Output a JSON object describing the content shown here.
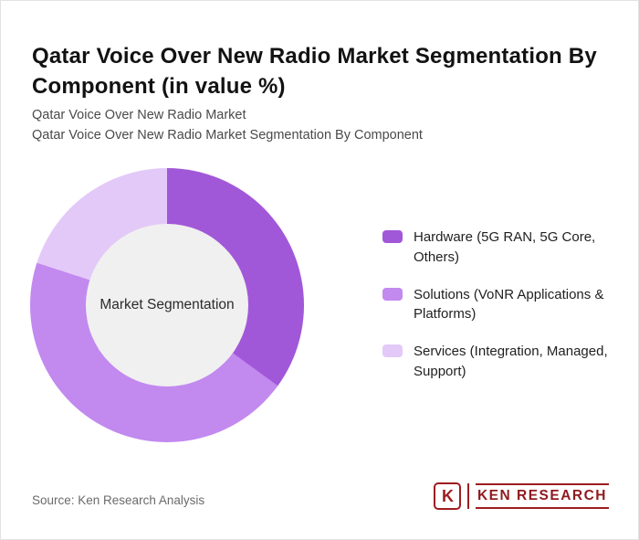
{
  "header": {
    "title": "Qatar Voice Over New Radio Market Segmentation By Component (in value %)",
    "subtitle1": "Qatar Voice Over New Radio Market",
    "subtitle2": "Qatar Voice Over New Radio Market Segmentation By Component"
  },
  "chart_data": {
    "type": "pie",
    "donut": true,
    "title": "Qatar Voice Over New Radio Market Segmentation By Component (in value %)",
    "center_label": "Market Segmentation",
    "categories": [
      "Hardware (5G RAN, 5G Core, Others)",
      "Solutions (VoNR Applications & Platforms)",
      "Services (Integration, Managed, Support)"
    ],
    "values": [
      35,
      45,
      20
    ],
    "colors": [
      "#a158d8",
      "#c289ef",
      "#e3c9f8"
    ],
    "hole_color": "#f0f0f0",
    "legend_position": "right",
    "start_angle_deg": 0
  },
  "legend": {
    "items": [
      {
        "label": "Hardware (5G RAN, 5G Core, Others)",
        "color": "#a158d8"
      },
      {
        "label": "Solutions (VoNR Applications & Platforms)",
        "color": "#c289ef"
      },
      {
        "label": "Services (Integration, Managed, Support)",
        "color": "#e3c9f8"
      }
    ]
  },
  "footer": {
    "source": "Source: Ken Research Analysis",
    "logo": {
      "letter": "K",
      "text": "KEN RESEARCH",
      "color": "#9e1d20"
    }
  }
}
